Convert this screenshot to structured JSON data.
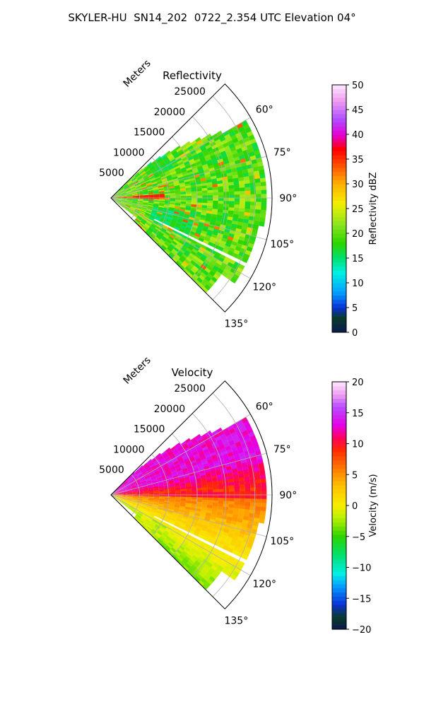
{
  "title": "SKYLER-HU  SN14_202  0722_2.354 UTC Elevation 04°",
  "chart_data": [
    {
      "type": "polar-sector",
      "title": "Reflectivity",
      "range_label": "Meters",
      "range_max": 28000,
      "azimuth_range": [
        45,
        135
      ],
      "range_ticks": [
        5000,
        10000,
        15000,
        20000,
        25000
      ],
      "range_tick_labels": [
        "5000",
        "10000",
        "15000",
        "20000",
        "25000"
      ],
      "azimuth_ticks": [
        60,
        75,
        90,
        105,
        120,
        135
      ],
      "azimuth_tick_labels": [
        "60°",
        "75°",
        "90°",
        "105°",
        "120°",
        "135°"
      ],
      "grid": true,
      "colorbar": {
        "label": "Reflectivity dBZ",
        "min": 0,
        "max": 50,
        "ticks": [
          0,
          5,
          10,
          15,
          20,
          25,
          30,
          35,
          40,
          45,
          50
        ],
        "tick_labels": [
          "0",
          "5",
          "10",
          "15",
          "20",
          "25",
          "30",
          "35",
          "40",
          "45",
          "50"
        ],
        "stops": [
          {
            "v": 0,
            "c": "#0b1a4f"
          },
          {
            "v": 3,
            "c": "#0a3b2a"
          },
          {
            "v": 5,
            "c": "#0b2fd8"
          },
          {
            "v": 8,
            "c": "#009dff"
          },
          {
            "v": 12,
            "c": "#00f0e6"
          },
          {
            "v": 15,
            "c": "#00e070"
          },
          {
            "v": 18,
            "c": "#2bd400"
          },
          {
            "v": 22,
            "c": "#8fe61e"
          },
          {
            "v": 26,
            "c": "#f3ef00"
          },
          {
            "v": 30,
            "c": "#ffb000"
          },
          {
            "v": 34,
            "c": "#ff4a00"
          },
          {
            "v": 37,
            "c": "#ff0000"
          },
          {
            "v": 40,
            "c": "#e600d8"
          },
          {
            "v": 43,
            "c": "#b04cff"
          },
          {
            "v": 47,
            "c": "#f0a0f0"
          },
          {
            "v": 50,
            "c": "#fde8fd"
          }
        ]
      },
      "field": "reflectivity"
    },
    {
      "type": "polar-sector",
      "title": "Velocity",
      "range_label": "Meters",
      "range_max": 28000,
      "azimuth_range": [
        45,
        135
      ],
      "range_ticks": [
        5000,
        10000,
        15000,
        20000,
        25000
      ],
      "range_tick_labels": [
        "5000",
        "10000",
        "15000",
        "20000",
        "25000"
      ],
      "azimuth_ticks": [
        60,
        75,
        90,
        105,
        120,
        135
      ],
      "azimuth_tick_labels": [
        "60°",
        "75°",
        "90°",
        "105°",
        "120°",
        "135°"
      ],
      "grid": true,
      "colorbar": {
        "label": "Velocity (m/s)",
        "min": -20,
        "max": 20,
        "ticks": [
          -20,
          -15,
          -10,
          -5,
          0,
          5,
          10,
          15,
          20
        ],
        "tick_labels": [
          "−20",
          "−15",
          "−10",
          "−5",
          "0",
          "5",
          "10",
          "15",
          "20"
        ],
        "stops": [
          {
            "v": -20,
            "c": "#0b1a4f"
          },
          {
            "v": -18,
            "c": "#0a3b2a"
          },
          {
            "v": -16,
            "c": "#0b2fd8"
          },
          {
            "v": -13,
            "c": "#009dff"
          },
          {
            "v": -11,
            "c": "#00f0e6"
          },
          {
            "v": -8,
            "c": "#00e070"
          },
          {
            "v": -5,
            "c": "#2bd400"
          },
          {
            "v": -2,
            "c": "#b8f000"
          },
          {
            "v": 0,
            "c": "#f6ee00"
          },
          {
            "v": 3,
            "c": "#ffc400"
          },
          {
            "v": 6,
            "c": "#ff7a00"
          },
          {
            "v": 9,
            "c": "#ff2a00"
          },
          {
            "v": 11,
            "c": "#ff0060"
          },
          {
            "v": 13,
            "c": "#e600e6"
          },
          {
            "v": 16,
            "c": "#b84cff"
          },
          {
            "v": 18,
            "c": "#f0a0f0"
          },
          {
            "v": 20,
            "c": "#fde8fd"
          }
        ]
      },
      "field": "velocity"
    }
  ]
}
